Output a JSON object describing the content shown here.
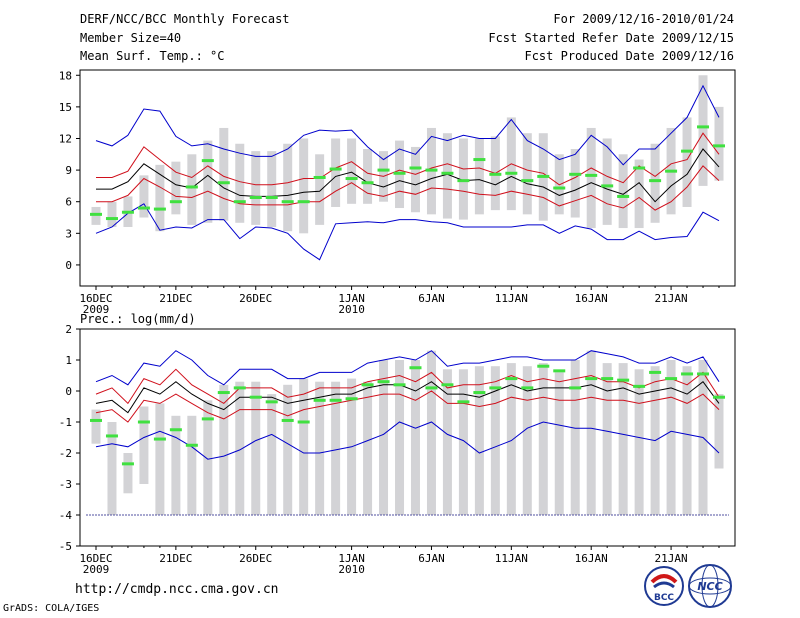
{
  "header": {
    "title": "DERF/NCC/BCC Monthly Forecast",
    "member_size": "Member Size=40",
    "variable": "Mean Surf. Temp.: °C",
    "period": "For 2009/12/16-2010/01/24",
    "start_date": "Fcst Started Refer Date 2009/12/15",
    "produced_date": "Fcst Produced Date 2009/12/16"
  },
  "footer": {
    "url": "http://cmdp.ncc.cma.gov.cn",
    "credit": "GrADS: COLA/IGES",
    "logo_left_text": "BCC",
    "logo_right_text": "NCC"
  },
  "colors": {
    "box": "#d3d3d6",
    "median": "#000000",
    "spread": "#d0101c",
    "extreme": "#0000cc",
    "observed": "#40e040",
    "border": "#000000"
  },
  "chart_data": [
    {
      "type": "box-and-line",
      "title": "Mean Surf. Temp.: °C",
      "xlabel": "",
      "ylabel": "",
      "x_tick_labels": [
        "16DEC",
        "21DEC",
        "26DEC",
        "1JAN",
        "6JAN",
        "11JAN",
        "16JAN",
        "21JAN"
      ],
      "x_tick_days": [
        1,
        6,
        11,
        17,
        22,
        27,
        32,
        37
      ],
      "year_labels": [
        {
          "day": 1,
          "text": "2009"
        },
        {
          "day": 17,
          "text": "2010"
        }
      ],
      "ylim": [
        -2,
        18.5
      ],
      "yticks": [
        0,
        3,
        6,
        9,
        12,
        15,
        18
      ],
      "days": [
        1,
        2,
        3,
        4,
        5,
        6,
        7,
        8,
        9,
        10,
        11,
        12,
        13,
        14,
        15,
        16,
        17,
        18,
        19,
        20,
        21,
        22,
        23,
        24,
        25,
        26,
        27,
        28,
        29,
        30,
        31,
        32,
        33,
        34,
        35,
        36,
        37,
        38,
        39,
        40
      ],
      "box_low": [
        3.8,
        3.6,
        3.6,
        4.5,
        3.2,
        4.8,
        3.8,
        4.0,
        4.2,
        4.0,
        3.8,
        3.6,
        3.2,
        3.0,
        3.8,
        5.5,
        5.8,
        5.8,
        6.0,
        5.4,
        5.0,
        4.8,
        4.4,
        4.3,
        4.8,
        5.2,
        5.2,
        4.8,
        4.2,
        4.8,
        4.5,
        3.5,
        3.8,
        3.5,
        3.5,
        4.0,
        4.8,
        5.5,
        7.5,
        8.0
      ],
      "box_high": [
        5.5,
        6.0,
        6.5,
        8.5,
        9.5,
        9.8,
        10.5,
        11.8,
        13.0,
        11.5,
        10.8,
        10.8,
        11.5,
        12.0,
        10.5,
        12.0,
        12.0,
        11.0,
        10.8,
        11.8,
        11.2,
        13.0,
        12.5,
        12.0,
        12.0,
        12.2,
        14.0,
        12.5,
        12.5,
        10.5,
        11.0,
        13.0,
        12.0,
        10.5,
        10.0,
        11.5,
        13.0,
        14.0,
        18.0,
        15.0
      ],
      "series": [
        {
          "name": "max",
          "color_key": "extreme",
          "values": [
            11.8,
            11.3,
            12.3,
            14.8,
            14.6,
            12.2,
            11.3,
            11.5,
            11.0,
            10.6,
            10.3,
            10.3,
            11.0,
            12.3,
            12.8,
            12.7,
            12.8,
            11.2,
            10.0,
            11.0,
            10.5,
            12.2,
            11.8,
            12.3,
            12.0,
            12.0,
            13.8,
            11.8,
            11.0,
            10.0,
            10.5,
            12.3,
            11.2,
            9.5,
            11.0,
            11.0,
            12.5,
            14.0,
            17.0,
            14.0
          ]
        },
        {
          "name": "upper",
          "color_key": "spread",
          "values": [
            8.3,
            8.3,
            8.9,
            11.2,
            10.0,
            8.8,
            8.3,
            9.4,
            8.4,
            7.9,
            7.6,
            7.6,
            7.8,
            8.2,
            8.2,
            9.2,
            9.8,
            8.7,
            8.4,
            9.0,
            8.6,
            9.2,
            9.6,
            9.1,
            9.2,
            8.7,
            9.6,
            9.0,
            8.7,
            7.6,
            8.3,
            9.2,
            8.4,
            7.8,
            9.4,
            8.4,
            9.6,
            10.0,
            12.5,
            10.5
          ]
        },
        {
          "name": "median",
          "color_key": "median",
          "values": [
            7.2,
            7.2,
            7.9,
            9.6,
            8.6,
            7.6,
            7.3,
            8.5,
            7.3,
            6.6,
            6.5,
            6.5,
            6.6,
            6.9,
            7.0,
            8.4,
            8.8,
            7.8,
            7.4,
            8.0,
            7.6,
            8.2,
            8.6,
            8.0,
            8.1,
            7.6,
            8.4,
            7.7,
            7.4,
            6.6,
            7.1,
            7.8,
            7.2,
            6.7,
            7.8,
            6.0,
            7.5,
            8.6,
            11.0,
            9.3
          ]
        },
        {
          "name": "lower",
          "color_key": "spread",
          "values": [
            6.0,
            6.0,
            6.6,
            8.2,
            7.4,
            6.5,
            6.4,
            7.0,
            6.3,
            5.8,
            5.7,
            5.7,
            5.7,
            6.0,
            6.0,
            7.0,
            7.8,
            6.8,
            6.5,
            7.0,
            6.7,
            7.3,
            7.2,
            7.0,
            6.7,
            6.6,
            7.0,
            6.7,
            6.4,
            5.6,
            6.1,
            6.6,
            5.8,
            5.4,
            6.4,
            5.2,
            6.0,
            7.4,
            9.4,
            8.0
          ]
        },
        {
          "name": "min",
          "color_key": "extreme",
          "values": [
            3.0,
            3.6,
            4.9,
            5.8,
            3.3,
            3.6,
            3.5,
            4.3,
            4.3,
            2.5,
            3.6,
            3.5,
            3.0,
            1.5,
            0.5,
            3.9,
            4.0,
            4.1,
            4.0,
            4.3,
            4.3,
            4.1,
            4.0,
            3.6,
            3.6,
            3.6,
            3.6,
            3.8,
            3.8,
            3.0,
            3.7,
            3.4,
            2.4,
            2.4,
            3.2,
            2.4,
            2.6,
            2.7,
            5.0,
            4.2
          ]
        }
      ],
      "observed": [
        4.8,
        4.4,
        5.0,
        5.4,
        5.3,
        6.0,
        7.4,
        9.9,
        7.8,
        6.0,
        6.4,
        6.4,
        6.0,
        6.0,
        8.3,
        9.1,
        8.2,
        7.8,
        9.0,
        8.7,
        9.2,
        9.0,
        8.7,
        8.0,
        10.0,
        8.6,
        8.7,
        8.0,
        8.4,
        7.3,
        8.6,
        8.5,
        7.5,
        6.5,
        9.2,
        8.0,
        8.9,
        10.8,
        13.1,
        11.3
      ]
    },
    {
      "type": "box-and-line",
      "title": "Prec.: log(mm/d)",
      "xlabel": "",
      "ylabel": "",
      "x_tick_labels": [
        "16DEC",
        "21DEC",
        "26DEC",
        "1JAN",
        "6JAN",
        "11JAN",
        "16JAN",
        "21JAN"
      ],
      "x_tick_days": [
        1,
        6,
        11,
        17,
        22,
        27,
        32,
        37
      ],
      "year_labels": [
        {
          "day": 1,
          "text": "2009"
        },
        {
          "day": 17,
          "text": "2010"
        }
      ],
      "ylim": [
        -5,
        2
      ],
      "yticks": [
        -5,
        -4,
        -3,
        -2,
        -1,
        0,
        1,
        2
      ],
      "days": [
        1,
        2,
        3,
        4,
        5,
        6,
        7,
        8,
        9,
        10,
        11,
        12,
        13,
        14,
        15,
        16,
        17,
        18,
        19,
        20,
        21,
        22,
        23,
        24,
        25,
        26,
        27,
        28,
        29,
        30,
        31,
        32,
        33,
        34,
        35,
        36,
        37,
        38,
        39,
        40
      ],
      "box_low": [
        -1.7,
        -4,
        -3.3,
        -3,
        -4,
        -4,
        -4,
        -4,
        -4,
        -4,
        -4,
        -4,
        -4,
        -4,
        -4,
        -4,
        -4,
        -4,
        -4,
        -4,
        -4,
        -4,
        -4,
        -4,
        -4,
        -4,
        -4,
        -4,
        -4,
        -4,
        -4,
        -4,
        -4,
        -4,
        -4,
        -4,
        -4,
        -4,
        -4,
        -2.5
      ],
      "box_high": [
        -0.6,
        -1.0,
        -2.0,
        -0.5,
        -0.4,
        -0.8,
        -0.8,
        -0.3,
        0.2,
        0.3,
        0.3,
        -0.1,
        0.2,
        0.4,
        0.3,
        0.3,
        0.4,
        0.3,
        1.0,
        1.0,
        1.0,
        1.3,
        0.7,
        0.7,
        0.8,
        0.8,
        0.9,
        0.8,
        0.9,
        0.6,
        1.0,
        1.3,
        0.9,
        0.9,
        0.7,
        0.8,
        1.0,
        0.8,
        1.0,
        -0.1
      ],
      "series": [
        {
          "name": "max",
          "color_key": "extreme",
          "values": [
            0.3,
            0.5,
            0.2,
            0.9,
            0.8,
            1.3,
            1.0,
            0.5,
            0.2,
            0.7,
            0.7,
            0.7,
            0.4,
            0.4,
            0.6,
            0.6,
            0.6,
            0.9,
            1.0,
            1.1,
            1.0,
            1.3,
            0.8,
            0.9,
            0.9,
            1.0,
            1.1,
            1.1,
            1.0,
            1.0,
            1.0,
            1.3,
            1.2,
            1.1,
            0.9,
            0.9,
            1.1,
            0.9,
            1.1,
            0.3
          ]
        },
        {
          "name": "upper",
          "color_key": "spread",
          "values": [
            -0.1,
            0.1,
            -0.4,
            0.4,
            0.2,
            0.7,
            0.2,
            -0.1,
            -0.4,
            0.1,
            0.1,
            0.1,
            -0.2,
            -0.1,
            0.1,
            0.1,
            0.1,
            0.3,
            0.4,
            0.5,
            0.3,
            0.6,
            0.1,
            0.2,
            0.2,
            0.3,
            0.5,
            0.3,
            0.4,
            0.3,
            0.4,
            0.5,
            0.3,
            0.3,
            0.1,
            0.3,
            0.4,
            0.2,
            0.6,
            -0.2
          ]
        },
        {
          "name": "median",
          "color_key": "median",
          "values": [
            -0.4,
            -0.3,
            -0.7,
            0.1,
            -0.1,
            0.3,
            -0.1,
            -0.4,
            -0.6,
            -0.2,
            -0.2,
            -0.2,
            -0.4,
            -0.3,
            -0.2,
            -0.1,
            -0.1,
            0.1,
            0.2,
            0.2,
            0.0,
            0.3,
            -0.1,
            -0.1,
            -0.2,
            0.0,
            0.2,
            0.0,
            0.1,
            0.1,
            0.1,
            0.2,
            0.0,
            0.1,
            -0.1,
            0.0,
            0.1,
            -0.1,
            0.3,
            -0.4
          ]
        },
        {
          "name": "lower",
          "color_key": "spread",
          "values": [
            -0.7,
            -0.6,
            -1.0,
            -0.3,
            -0.4,
            -0.1,
            -0.4,
            -0.7,
            -0.9,
            -0.6,
            -0.6,
            -0.6,
            -0.8,
            -0.6,
            -0.5,
            -0.4,
            -0.3,
            -0.2,
            -0.1,
            -0.1,
            -0.3,
            0.0,
            -0.4,
            -0.4,
            -0.5,
            -0.4,
            -0.2,
            -0.3,
            -0.2,
            -0.3,
            -0.3,
            -0.2,
            -0.3,
            -0.3,
            -0.4,
            -0.3,
            -0.2,
            -0.4,
            -0.1,
            -0.6
          ]
        },
        {
          "name": "min",
          "color_key": "extreme",
          "values": [
            -1.8,
            -1.7,
            -1.8,
            -1.5,
            -1.3,
            -1.5,
            -1.8,
            -2.2,
            -2.1,
            -1.9,
            -1.6,
            -1.4,
            -1.7,
            -2.0,
            -2.0,
            -1.9,
            -1.8,
            -1.6,
            -1.4,
            -1.0,
            -1.2,
            -1.0,
            -1.4,
            -1.6,
            -2.0,
            -1.8,
            -1.6,
            -1.2,
            -1.0,
            -1.1,
            -1.2,
            -1.2,
            -1.3,
            -1.4,
            -1.5,
            -1.6,
            -1.3,
            -1.4,
            -1.5,
            -2.0
          ]
        }
      ],
      "observed": [
        -0.95,
        -1.45,
        -2.35,
        -1.0,
        -1.55,
        -1.25,
        -1.75,
        -0.9,
        -0.05,
        0.1,
        -0.2,
        -0.35,
        -0.95,
        -1.0,
        -0.3,
        -0.3,
        -0.25,
        0.2,
        0.3,
        0.2,
        0.75,
        0.1,
        0.2,
        -0.35,
        -0.05,
        0.1,
        0.4,
        0.1,
        0.8,
        0.65,
        0.1,
        0.4,
        0.4,
        0.35,
        0.15,
        0.6,
        0.4,
        0.55,
        0.55,
        -0.2
      ]
    }
  ]
}
